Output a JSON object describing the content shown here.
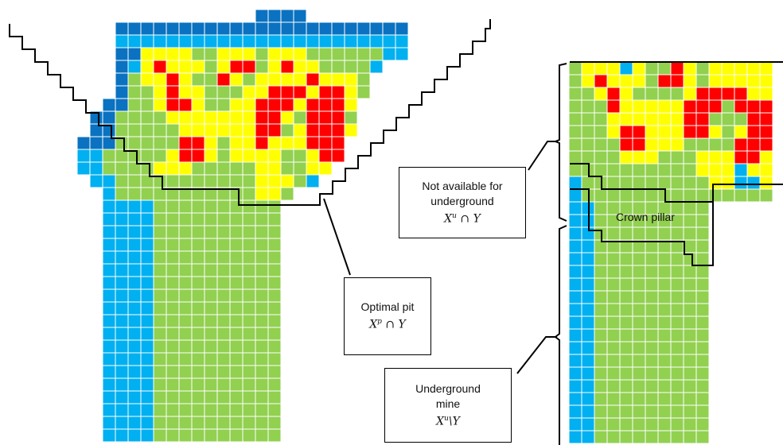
{
  "colors": {
    "dark_blue": "#0a72c0",
    "light_blue": "#00b0f0",
    "green": "#92d050",
    "yellow": "#ffff00",
    "red": "#ff0000",
    "outline": "#000000"
  },
  "labels": {
    "optimal_pit": {
      "title": "Optimal pit",
      "math_base": "X",
      "math_sup": "p",
      "math_rest": " ∩ Y"
    },
    "not_available": {
      "line1": "Not available for",
      "line2": "underground",
      "math_base": "X",
      "math_sup": "u",
      "math_rest": " ∩ Y"
    },
    "underground_mine": {
      "line1": "Underground",
      "line2": "mine",
      "math_base": "X",
      "math_sup": "u",
      "math_rest": "\\Y"
    },
    "crown_pillar": "Crown pillar"
  }
}
